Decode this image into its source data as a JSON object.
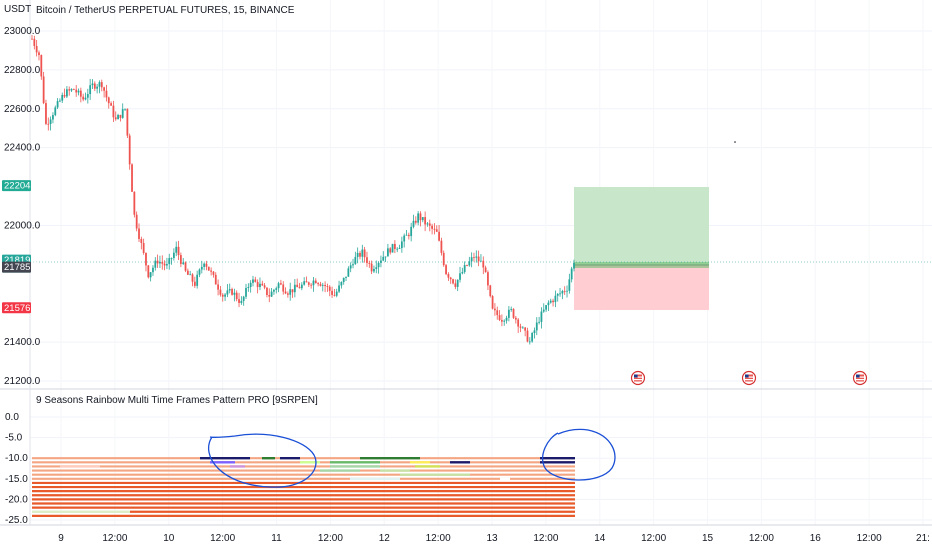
{
  "header": {
    "currency": "USDT",
    "title": "Bitcoin / TetherUS PERPETUAL FUTURES, 15, BINANCE"
  },
  "price_axis": {
    "ticks": [
      {
        "label": "23000.0",
        "value": 23000
      },
      {
        "label": "22800.0",
        "value": 22800
      },
      {
        "label": "22600.0",
        "value": 22600
      },
      {
        "label": "22400.0",
        "value": 22400
      },
      {
        "label": "22000.0",
        "value": 22000
      },
      {
        "label": "21400.0",
        "value": 21400
      },
      {
        "label": "21200.0",
        "value": 21200
      }
    ],
    "badges": [
      {
        "name": "take-profit-badge",
        "label": "22204.7",
        "value": 22204.7,
        "color": "#22ab94"
      },
      {
        "name": "last-price-badge",
        "label": "21819.3",
        "sub": "12:50",
        "value": 21819.3,
        "color": "#26a69a"
      },
      {
        "name": "entry-price-badge",
        "label": "21785.9",
        "value": 21785.9,
        "color": "#434651"
      },
      {
        "name": "stop-loss-badge",
        "label": "21576.5",
        "value": 21576.5,
        "color": "#f23645"
      }
    ]
  },
  "indicator": {
    "title": "9 Seasons Rainbow Multi Time Frames Pattern PRO [9SRPEN]",
    "ticks": [
      {
        "label": "0.0",
        "value": 0
      },
      {
        "label": "-5.0",
        "value": -5
      },
      {
        "label": "-10.0",
        "value": -10
      },
      {
        "label": "-15.0",
        "value": -15
      },
      {
        "label": "-20.0",
        "value": -20
      },
      {
        "label": "-25.0",
        "value": -25
      }
    ]
  },
  "time_axis": {
    "labels": [
      "9",
      "12:00",
      "10",
      "12:00",
      "11",
      "12:00",
      "12",
      "12:00",
      "13",
      "12:00",
      "14",
      "12:00",
      "15",
      "12:00",
      "16",
      "12:00",
      "21:"
    ]
  },
  "colors": {
    "up": "#26a69a",
    "down": "#ef5350",
    "profit_zone": "#c8e6c9",
    "loss_zone": "#ffcdd2",
    "annotation": "#1a4fd6",
    "rainbow_main": "#e85a2a",
    "rainbow_light": "#f4a582"
  },
  "icons": [
    "us-flag-event-icon",
    "us-flag-event-icon",
    "us-flag-event-icon"
  ],
  "chart_data": {
    "type": "candlestick",
    "timeframe": "15",
    "symbol": "BTCUSDT.P",
    "ylim": [
      21200,
      23050
    ],
    "trade": {
      "take_profit": 22204.7,
      "entry": 21785.9,
      "stop_loss": 21576.5,
      "last": 21819.3
    },
    "path": [
      [
        0,
        22960
      ],
      [
        3,
        22880
      ],
      [
        6,
        22520
      ],
      [
        10,
        22600
      ],
      [
        14,
        22680
      ],
      [
        18,
        22700
      ],
      [
        22,
        22650
      ],
      [
        26,
        22720
      ],
      [
        30,
        22730
      ],
      [
        32,
        22660
      ],
      [
        36,
        22540
      ],
      [
        40,
        22600
      ],
      [
        44,
        22050
      ],
      [
        47,
        21900
      ],
      [
        50,
        21750
      ],
      [
        54,
        21820
      ],
      [
        58,
        21790
      ],
      [
        62,
        21880
      ],
      [
        66,
        21760
      ],
      [
        70,
        21700
      ],
      [
        74,
        21820
      ],
      [
        78,
        21730
      ],
      [
        82,
        21640
      ],
      [
        86,
        21660
      ],
      [
        90,
        21600
      ],
      [
        94,
        21720
      ],
      [
        98,
        21690
      ],
      [
        102,
        21640
      ],
      [
        106,
        21700
      ],
      [
        110,
        21660
      ],
      [
        114,
        21680
      ],
      [
        118,
        21700
      ],
      [
        122,
        21720
      ],
      [
        126,
        21690
      ],
      [
        130,
        21640
      ],
      [
        134,
        21720
      ],
      [
        138,
        21820
      ],
      [
        142,
        21860
      ],
      [
        146,
        21780
      ],
      [
        150,
        21830
      ],
      [
        154,
        21880
      ],
      [
        158,
        21900
      ],
      [
        162,
        21960
      ],
      [
        166,
        22050
      ],
      [
        170,
        22000
      ],
      [
        174,
        21960
      ],
      [
        178,
        21760
      ],
      [
        182,
        21700
      ],
      [
        186,
        21780
      ],
      [
        190,
        21840
      ],
      [
        194,
        21800
      ],
      [
        198,
        21560
      ],
      [
        202,
        21520
      ],
      [
        206,
        21560
      ],
      [
        210,
        21480
      ],
      [
        214,
        21400
      ],
      [
        218,
        21520
      ],
      [
        222,
        21600
      ],
      [
        226,
        21640
      ],
      [
        230,
        21680
      ],
      [
        233,
        21820
      ]
    ]
  }
}
